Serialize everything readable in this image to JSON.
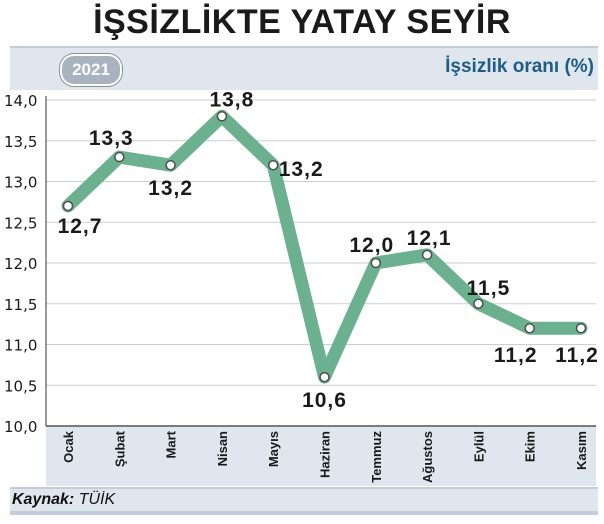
{
  "title": "İŞSİZLİKTE YATAY SEYİR",
  "year_badge": "2021",
  "series_label": "İşsizlik oranı (%)",
  "source": {
    "label": "Kaynak:",
    "value": "TÜİK"
  },
  "chart_data": {
    "type": "line",
    "title": "İŞSİZLİKTE YATAY SEYİR",
    "ylabel": "İşsizlik oranı (%)",
    "xlabel": "",
    "categories": [
      "Ocak",
      "Şubat",
      "Mart",
      "Nisan",
      "Mayıs",
      "Haziran",
      "Temmuz",
      "Ağustos",
      "Eylül",
      "Ekim",
      "Kasım"
    ],
    "values": [
      12.7,
      13.3,
      13.2,
      13.8,
      13.2,
      10.6,
      12.0,
      12.1,
      11.5,
      11.2,
      11.2
    ],
    "data_labels": [
      "12,7",
      "13,3",
      "13,2",
      "13,8",
      "13,2",
      "10,6",
      "12,0",
      "12,1",
      "11,5",
      "11,2",
      "11,2"
    ],
    "yticks": [
      "10,0",
      "10,5",
      "11,0",
      "11,5",
      "12,0",
      "12,5",
      "13,0",
      "13,5",
      "14,0"
    ],
    "ylim": [
      10.0,
      14.0
    ],
    "grid": "horizontal",
    "colors": {
      "line": "#6bb08f",
      "marker_fill": "#ffffff",
      "marker_stroke": "#4d4d4d",
      "category_band": "#dfe6ee"
    }
  }
}
